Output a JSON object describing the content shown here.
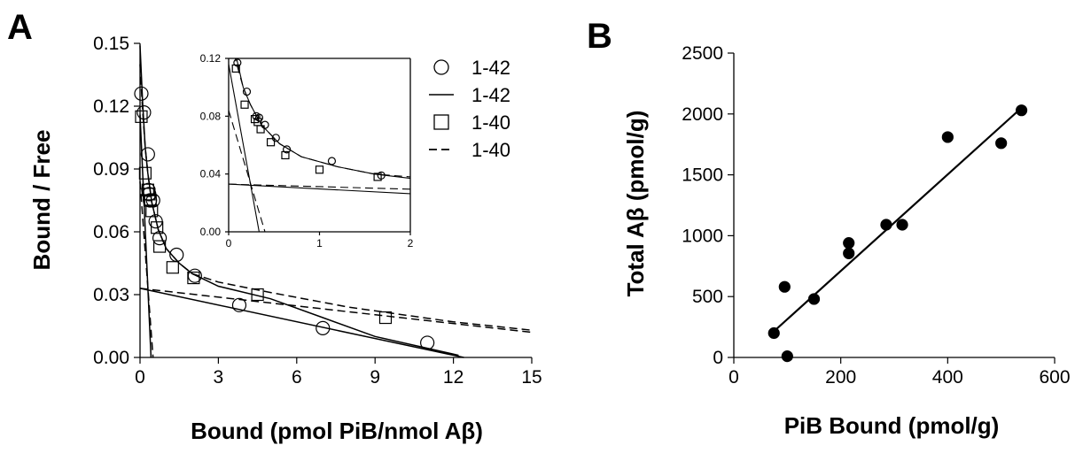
{
  "panel_a": {
    "letter": "A",
    "xlabel": "Bound (pmol PiB/nmol Aβ)",
    "ylabel": "Bound / Free",
    "legend": [
      "1-42",
      "1-42",
      "1-40",
      "1-40"
    ]
  },
  "panel_b": {
    "letter": "B",
    "xlabel": "PiB Bound (pmol/g)",
    "ylabel": "Total Aβ (pmol/g)"
  },
  "chart_data": [
    {
      "type": "scatter",
      "title": "",
      "xlabel": "Bound (pmol PiB/nmol Aβ)",
      "ylabel": "Bound / Free",
      "xlim": [
        0,
        15
      ],
      "ylim": [
        0,
        0.15
      ],
      "xticks": [
        "0",
        "3",
        "6",
        "9",
        "12",
        "15"
      ],
      "yticks": [
        "0.00",
        "0.03",
        "0.06",
        "0.09",
        "0.12",
        "0.15"
      ],
      "grid": false,
      "legend_position": "top-right",
      "series": [
        {
          "name": "1-42",
          "kind": "points",
          "marker": "circle",
          "points": [
            [
              0.05,
              0.126
            ],
            [
              0.15,
              0.117
            ],
            [
              0.3,
              0.097
            ],
            [
              0.32,
              0.08
            ],
            [
              0.35,
              0.078
            ],
            [
              0.38,
              0.075
            ],
            [
              0.5,
              0.075
            ],
            [
              0.6,
              0.065
            ],
            [
              0.75,
              0.057
            ],
            [
              1.4,
              0.049
            ],
            [
              2.1,
              0.039
            ],
            [
              3.8,
              0.025
            ],
            [
              7.0,
              0.014
            ],
            [
              11.0,
              0.007
            ]
          ]
        },
        {
          "name": "1-42",
          "kind": "fit",
          "line": "solid",
          "components": [
            {
              "label": "high-affinity",
              "points": [
                [
                  0.0,
                  0.116
                ],
                [
                  0.42,
                  0.0
                ]
              ]
            },
            {
              "label": "low-affinity",
              "points": [
                [
                  0.0,
                  0.033
                ],
                [
                  12.4,
                  0.0
                ]
              ]
            },
            {
              "label": "sum",
              "points": [
                [
                  0.0,
                  0.149
                ],
                [
                  0.1,
                  0.122
                ],
                [
                  0.2,
                  0.1
                ],
                [
                  0.3,
                  0.088
                ],
                [
                  0.45,
                  0.074
                ],
                [
                  0.7,
                  0.061
                ],
                [
                  1.0,
                  0.052
                ],
                [
                  1.5,
                  0.045
                ],
                [
                  2.0,
                  0.04
                ],
                [
                  3.0,
                  0.034
                ],
                [
                  5.0,
                  0.028
                ],
                [
                  7.0,
                  0.019
                ],
                [
                  9.0,
                  0.01
                ],
                [
                  12.2,
                  0.001
                ]
              ]
            }
          ]
        },
        {
          "name": "1-40",
          "kind": "points",
          "marker": "square",
          "points": [
            [
              0.05,
              0.115
            ],
            [
              0.2,
              0.088
            ],
            [
              0.3,
              0.08
            ],
            [
              0.35,
              0.078
            ],
            [
              0.4,
              0.075
            ],
            [
              0.45,
              0.07
            ],
            [
              0.65,
              0.062
            ],
            [
              0.75,
              0.053
            ],
            [
              1.25,
              0.043
            ],
            [
              2.05,
              0.038
            ],
            [
              4.5,
              0.03
            ],
            [
              9.4,
              0.019
            ]
          ]
        },
        {
          "name": "1-40",
          "kind": "fit",
          "line": "dashed",
          "components": [
            {
              "label": "high-affinity",
              "points": [
                [
                  0.0,
                  0.084
                ],
                [
                  0.5,
                  0.0
                ]
              ]
            },
            {
              "label": "low-affinity",
              "points": [
                [
                  0.0,
                  0.033
                ],
                [
                  15.0,
                  0.012
                ]
              ]
            },
            {
              "label": "sum",
              "points": [
                [
                  0.0,
                  0.14
                ],
                [
                  0.1,
                  0.118
                ],
                [
                  0.2,
                  0.1
                ],
                [
                  0.3,
                  0.088
                ],
                [
                  0.45,
                  0.074
                ],
                [
                  0.7,
                  0.061
                ],
                [
                  1.0,
                  0.052
                ],
                [
                  1.5,
                  0.045
                ],
                [
                  2.0,
                  0.04
                ],
                [
                  3.0,
                  0.036
                ],
                [
                  5.0,
                  0.031
                ],
                [
                  8.0,
                  0.024
                ],
                [
                  12.0,
                  0.017
                ],
                [
                  15.0,
                  0.013
                ]
              ]
            }
          ]
        }
      ],
      "inset": {
        "xlim": [
          0,
          2.5
        ],
        "ylim": [
          0,
          0.12
        ],
        "xticks": [
          "0",
          "1",
          "2"
        ],
        "yticks": [
          "0.00",
          "0.04",
          "0.08",
          "0.12"
        ],
        "series_1_42_points": [
          [
            0.12,
            0.117
          ],
          [
            0.25,
            0.097
          ],
          [
            0.38,
            0.08
          ],
          [
            0.42,
            0.079
          ],
          [
            0.5,
            0.074
          ],
          [
            0.65,
            0.065
          ],
          [
            0.8,
            0.057
          ],
          [
            1.42,
            0.049
          ],
          [
            2.1,
            0.039
          ]
        ],
        "series_1_40_points": [
          [
            0.1,
            0.113
          ],
          [
            0.22,
            0.088
          ],
          [
            0.36,
            0.078
          ],
          [
            0.4,
            0.076
          ],
          [
            0.44,
            0.071
          ],
          [
            0.58,
            0.062
          ],
          [
            0.78,
            0.053
          ],
          [
            1.25,
            0.043
          ],
          [
            2.05,
            0.038
          ]
        ]
      }
    },
    {
      "type": "scatter",
      "title": "",
      "xlabel": "PiB Bound (pmol/g)",
      "ylabel": "Total Aβ (pmol/g)",
      "xlim": [
        0,
        600
      ],
      "ylim": [
        0,
        2500
      ],
      "xticks": [
        "0",
        "200",
        "400",
        "600"
      ],
      "yticks": [
        "0",
        "500",
        "1000",
        "1500",
        "2000",
        "2500"
      ],
      "grid": false,
      "series": [
        {
          "name": "",
          "kind": "points",
          "marker": "filled-circle",
          "points": [
            [
              75,
              200
            ],
            [
              95,
              580
            ],
            [
              100,
              10
            ],
            [
              150,
              480
            ],
            [
              215,
              940
            ],
            [
              215,
              855
            ],
            [
              285,
              1090
            ],
            [
              315,
              1090
            ],
            [
              400,
              1810
            ],
            [
              500,
              1760
            ],
            [
              538,
              2030
            ]
          ]
        },
        {
          "name": "",
          "kind": "fit",
          "line": "solid",
          "points": [
            [
              75,
              215
            ],
            [
              538,
              2050
            ]
          ]
        }
      ]
    }
  ]
}
